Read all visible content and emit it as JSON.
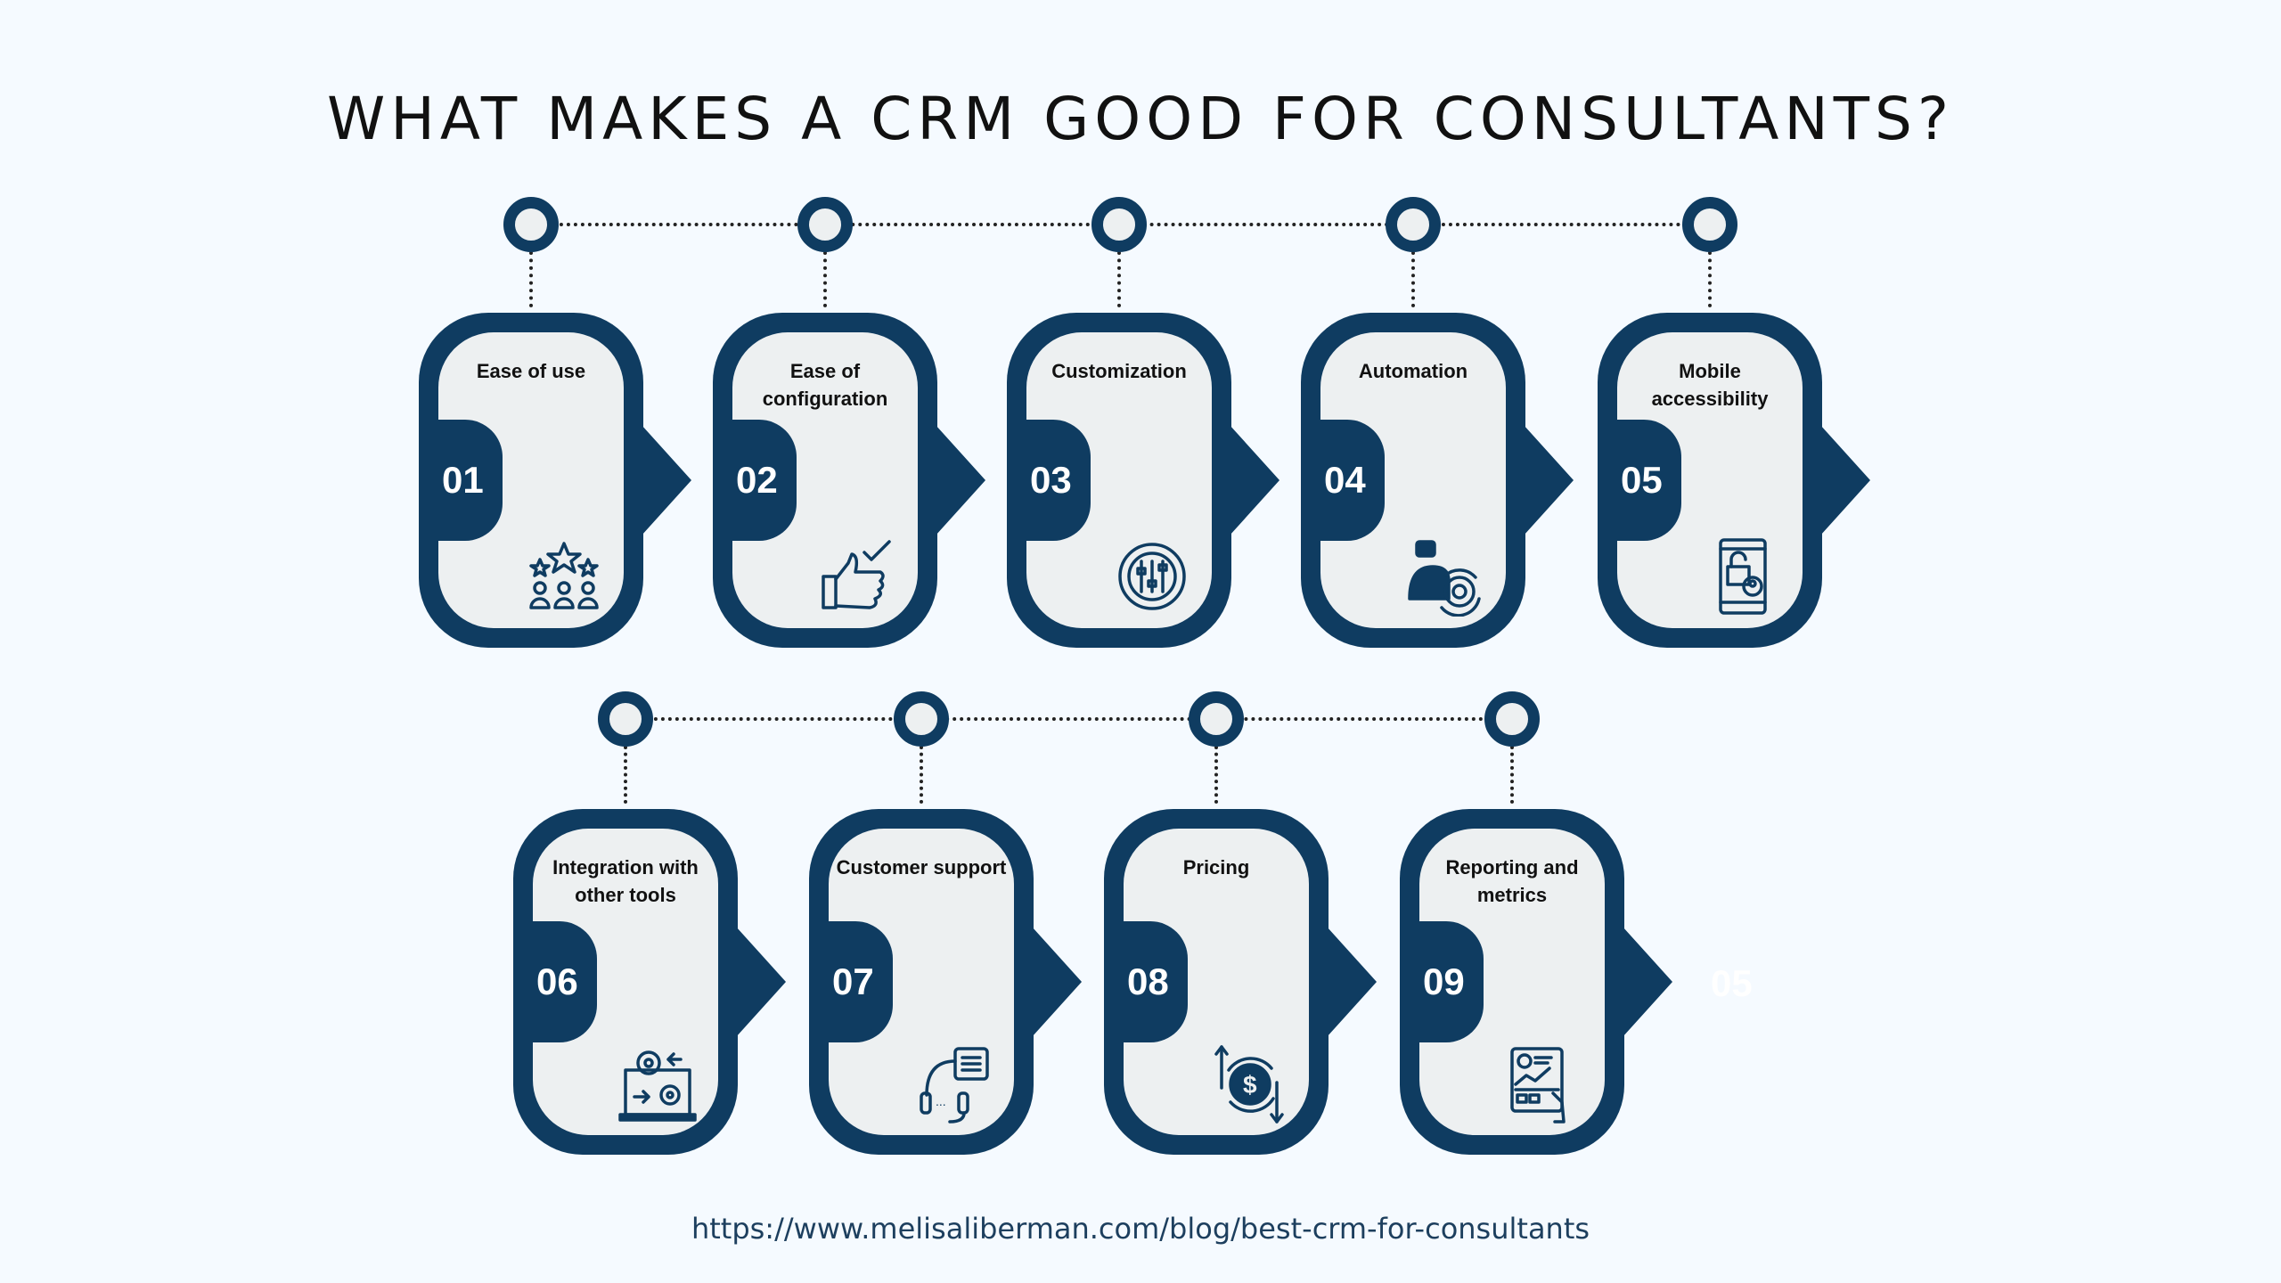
{
  "title": "WHAT MAKES A CRM GOOD FOR CONSULTANTS?",
  "colors": {
    "primary": "#0f3c61",
    "card_fill": "#edf0f1",
    "background": "#f5faff"
  },
  "items": [
    {
      "number": "01",
      "label": "Ease of use",
      "icon": "stars-people-icon"
    },
    {
      "number": "02",
      "label": "Ease of configuration",
      "icon": "thumbs-up-check-icon"
    },
    {
      "number": "03",
      "label": "Customization",
      "icon": "gear-sliders-icon"
    },
    {
      "number": "04",
      "label": "Automation",
      "icon": "robot-gear-icon"
    },
    {
      "number": "05",
      "label": "Mobile accessibility",
      "icon": "mobile-lock-icon"
    },
    {
      "number": "06",
      "label": "Integration with other tools",
      "icon": "laptop-gears-icon"
    },
    {
      "number": "07",
      "label": "Customer support",
      "icon": "headset-chat-icon"
    },
    {
      "number": "08",
      "label": "Pricing",
      "icon": "dollar-cycle-icon"
    },
    {
      "number": "09",
      "label": "Reporting and metrics",
      "icon": "report-dashboard-icon"
    }
  ],
  "ghost_number": "05",
  "footer_url": "https://www.melisaliberman.com/blog/best-crm-for-consultants"
}
